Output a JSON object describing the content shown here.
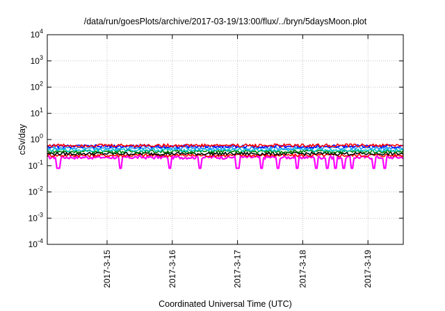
{
  "chart_data": {
    "type": "line",
    "title": "/data/run/goesPlots/archive/2017-03-19/13:00/flux/../bryn/5daysMoon.plot",
    "xlabel": "Coordinated Universal Time (UTC)",
    "ylabel": "cSv/day",
    "y_scale": "log",
    "ylim": [
      0.0001,
      10000
    ],
    "y_ticks": [
      {
        "value": 0.0001,
        "mantissa": "10",
        "exp": "-4"
      },
      {
        "value": 0.001,
        "mantissa": "10",
        "exp": "-3"
      },
      {
        "value": 0.01,
        "mantissa": "10",
        "exp": "-2"
      },
      {
        "value": 0.1,
        "mantissa": "10",
        "exp": "-1"
      },
      {
        "value": 1,
        "mantissa": "10",
        "exp": "0"
      },
      {
        "value": 10,
        "mantissa": "10",
        "exp": "1"
      },
      {
        "value": 100,
        "mantissa": "10",
        "exp": "2"
      },
      {
        "value": 1000,
        "mantissa": "10",
        "exp": "3"
      },
      {
        "value": 10000,
        "mantissa": "10",
        "exp": "4"
      }
    ],
    "xlim": [
      "2017-03-14T02:00",
      "2017-03-19T13:00"
    ],
    "x_ticks": [
      {
        "value": "2017-03-15T00:00",
        "label": "2017-3-15"
      },
      {
        "value": "2017-03-16T00:00",
        "label": "2017-3-16"
      },
      {
        "value": "2017-03-17T00:00",
        "label": "2017-3-17"
      },
      {
        "value": "2017-03-18T00:00",
        "label": "2017-3-18"
      },
      {
        "value": "2017-03-19T00:00",
        "label": "2017-3-19"
      }
    ],
    "grid": true,
    "series": [
      {
        "color": "#ff00ff",
        "level": 0.21,
        "dips": [
          "2017-03-14T06:00",
          "2017-03-15T05:00",
          "2017-03-15T23:00",
          "2017-03-16T10:00",
          "2017-03-17T00:00",
          "2017-03-17T09:00",
          "2017-03-17T15:00",
          "2017-03-17T22:00",
          "2017-03-18T05:00",
          "2017-03-18T09:00",
          "2017-03-18T12:00",
          "2017-03-18T15:00",
          "2017-03-18T18:00",
          "2017-03-19T02:00",
          "2017-03-19T06:00"
        ]
      },
      {
        "color": "#ff0000",
        "level": 0.25
      },
      {
        "color": "#000000",
        "level": 0.29
      },
      {
        "color": "#008000",
        "level": 0.35
      },
      {
        "color": "#00c8c8",
        "level": 0.4
      },
      {
        "color": "#2090ff",
        "level": 0.48
      },
      {
        "color": "#0000ff",
        "level": 0.55
      },
      {
        "color": "#ff0000",
        "level": 0.6
      }
    ]
  }
}
